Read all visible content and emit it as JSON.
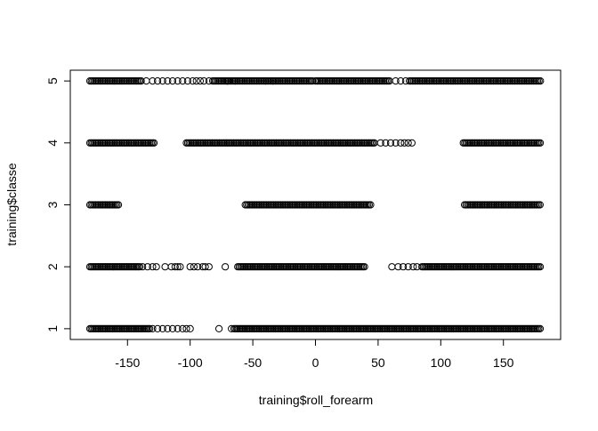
{
  "chart_data": {
    "type": "scatter",
    "title": "",
    "xlabel": "training$roll_forearm",
    "ylabel": "training$classe",
    "xlim": [
      -180,
      180
    ],
    "ylim": [
      1,
      5
    ],
    "xticks": [
      -150,
      -100,
      -50,
      0,
      50,
      100,
      150
    ],
    "yticks": [
      1,
      2,
      3,
      4,
      5
    ],
    "x_tick_labels": [
      "-150",
      "-100",
      "-50",
      "0",
      "50",
      "100",
      "150"
    ],
    "y_tick_labels": [
      "1",
      "2",
      "3",
      "4",
      "5"
    ],
    "grid": false,
    "marker": "open-circle",
    "point_color": "#000000",
    "series": [
      {
        "y": 5,
        "dense_segments": [
          [
            -180,
            -138
          ],
          [
            -82,
            -2
          ],
          [
            0,
            60
          ],
          [
            75,
            180
          ]
        ],
        "x_sparse": [
          -135,
          -130,
          -126,
          -122,
          -118,
          -114,
          -110,
          -106,
          -102,
          -98,
          -95,
          -92,
          -89,
          -85,
          -70,
          -64,
          -40,
          -34,
          64,
          68,
          72
        ]
      },
      {
        "y": 4,
        "dense_segments": [
          [
            -180,
            -128
          ],
          [
            -103,
            48
          ],
          [
            118,
            180
          ]
        ],
        "x_sparse": [
          52,
          56,
          60,
          64,
          68,
          71,
          74,
          77
        ]
      },
      {
        "y": 3,
        "dense_segments": [
          [
            -180,
            -157
          ],
          [
            -56,
            45
          ],
          [
            119,
            180
          ]
        ],
        "x_sparse": []
      },
      {
        "y": 2,
        "dense_segments": [
          [
            -180,
            -140
          ],
          [
            -62,
            40
          ],
          [
            85,
            180
          ]
        ],
        "x_sparse": [
          -138,
          -134,
          -130,
          -127,
          -120,
          -115,
          -112,
          -110,
          -108,
          -100,
          -97,
          -94,
          -90,
          -88,
          -85,
          -72,
          61,
          66,
          70,
          74,
          78,
          81
        ]
      },
      {
        "y": 1,
        "dense_segments": [
          [
            -180,
            -132
          ],
          [
            -65,
            180
          ]
        ],
        "x_sparse": [
          -130,
          -126,
          -122,
          -118,
          -114,
          -110,
          -106,
          -103,
          -100,
          -77,
          -67
        ]
      }
    ]
  }
}
